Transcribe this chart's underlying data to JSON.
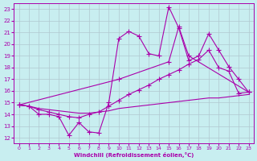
{
  "xlabel": "Windchill (Refroidissement éolien,°C)",
  "bg_color": "#c8eef0",
  "grid_color": "#b0c8d0",
  "line_color": "#aa00aa",
  "x_ticks": [
    0,
    1,
    2,
    3,
    4,
    5,
    6,
    7,
    8,
    9,
    10,
    11,
    12,
    13,
    14,
    15,
    16,
    17,
    18,
    19,
    20,
    21,
    22,
    23
  ],
  "y_ticks": [
    12,
    13,
    14,
    15,
    16,
    17,
    18,
    19,
    20,
    21,
    22,
    23
  ],
  "xlim": [
    -0.5,
    23.5
  ],
  "ylim": [
    11.5,
    23.5
  ],
  "series": [
    {
      "x": [
        0,
        1,
        2,
        3,
        4,
        5,
        6,
        7,
        8,
        9,
        10,
        11,
        12,
        13,
        14,
        15,
        16,
        17,
        18,
        19,
        20,
        21,
        22,
        23
      ],
      "y": [
        14.8,
        14.7,
        14.0,
        14.0,
        13.8,
        12.2,
        13.3,
        12.5,
        12.4,
        15.0,
        20.5,
        21.1,
        20.7,
        19.2,
        19.0,
        23.2,
        21.4,
        18.6,
        19.0,
        20.9,
        19.5,
        18.1,
        17.0,
        15.9
      ]
    },
    {
      "x": [
        0,
        10,
        15,
        16,
        17,
        23
      ],
      "y": [
        14.8,
        17.0,
        18.5,
        21.5,
        19.0,
        15.9
      ]
    },
    {
      "x": [
        0,
        1,
        2,
        3,
        4,
        5,
        6,
        7,
        8,
        9,
        10,
        11,
        12,
        13,
        14,
        15,
        16,
        17,
        18,
        19,
        20,
        21,
        22,
        23
      ],
      "y": [
        14.8,
        14.7,
        14.4,
        14.2,
        14.0,
        13.8,
        13.7,
        14.0,
        14.2,
        14.7,
        15.2,
        15.7,
        16.1,
        16.5,
        17.0,
        17.4,
        17.8,
        18.3,
        18.7,
        19.5,
        18.0,
        17.7,
        15.8,
        15.9
      ]
    },
    {
      "x": [
        0,
        1,
        2,
        3,
        4,
        5,
        6,
        7,
        8,
        9,
        10,
        11,
        12,
        13,
        14,
        15,
        16,
        17,
        18,
        19,
        20,
        21,
        22,
        23
      ],
      "y": [
        14.8,
        14.7,
        14.5,
        14.4,
        14.3,
        14.2,
        14.1,
        14.1,
        14.2,
        14.3,
        14.5,
        14.6,
        14.7,
        14.8,
        14.9,
        15.0,
        15.1,
        15.2,
        15.3,
        15.4,
        15.4,
        15.5,
        15.6,
        15.7
      ]
    }
  ]
}
